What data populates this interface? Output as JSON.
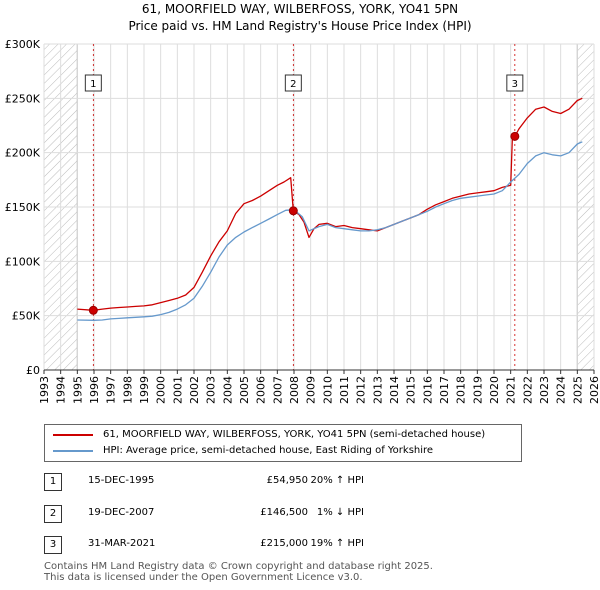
{
  "title_line1": "61, MOORFIELD WAY, WILBERFOSS, YORK, YO41 5PN",
  "title_line2": "Price paid vs. HM Land Registry's House Price Index (HPI)",
  "colors": {
    "property": "#cc0000",
    "hpi": "#6699cc",
    "grid": "#dddddd",
    "marker_line": "#cc0000"
  },
  "chart_data": {
    "type": "line",
    "xlim": [
      1993.0,
      2026.0
    ],
    "ylim": [
      0,
      300000
    ],
    "x_ticks": [
      1993,
      1994,
      1995,
      1996,
      1997,
      1998,
      1999,
      2000,
      2001,
      2002,
      2003,
      2004,
      2005,
      2006,
      2007,
      2008,
      2009,
      2010,
      2011,
      2012,
      2013,
      2014,
      2015,
      2016,
      2017,
      2018,
      2019,
      2020,
      2021,
      2022,
      2023,
      2024,
      2025,
      2026
    ],
    "y_ticks": [
      0,
      50000,
      100000,
      150000,
      200000,
      250000,
      300000
    ],
    "y_tick_labels": [
      "£0",
      "£50K",
      "£100K",
      "£150K",
      "£200K",
      "£250K",
      "£300K"
    ],
    "hatch_before": 1995.0,
    "hatch_after": 2025.0,
    "series": [
      {
        "name": "property",
        "x": [
          1995.0,
          1995.96,
          1996.5,
          1997.0,
          1997.5,
          1998.0,
          1998.5,
          1999.0,
          1999.5,
          2000.0,
          2000.5,
          2001.0,
          2001.5,
          2002.0,
          2002.5,
          2003.0,
          2003.5,
          2004.0,
          2004.5,
          2005.0,
          2005.5,
          2006.0,
          2006.5,
          2007.0,
          2007.4,
          2007.8,
          2007.96,
          2008.3,
          2008.6,
          2008.9,
          2009.2,
          2009.5,
          2010.0,
          2010.5,
          2011.0,
          2011.5,
          2012.0,
          2012.5,
          2013.0,
          2013.5,
          2014.0,
          2014.5,
          2015.0,
          2015.5,
          2016.0,
          2016.5,
          2017.0,
          2017.5,
          2018.0,
          2018.5,
          2019.0,
          2019.5,
          2020.0,
          2020.5,
          2021.0,
          2021.1,
          2021.25,
          2021.5,
          2022.0,
          2022.5,
          2023.0,
          2023.5,
          2024.0,
          2024.5,
          2025.0,
          2025.3
        ],
        "y": [
          56000,
          54950,
          56000,
          57000,
          57500,
          58000,
          58500,
          59000,
          60000,
          62000,
          64000,
          66000,
          69000,
          76000,
          90000,
          105000,
          118000,
          128000,
          144000,
          153000,
          156000,
          160000,
          165000,
          170000,
          173000,
          177000,
          146500,
          143000,
          136000,
          122000,
          130000,
          134000,
          135000,
          132000,
          133000,
          131000,
          130000,
          129000,
          128000,
          131000,
          134000,
          137000,
          140000,
          143000,
          148000,
          152000,
          155000,
          158000,
          160000,
          162000,
          163000,
          164000,
          165000,
          168000,
          170000,
          212000,
          215000,
          222000,
          232000,
          240000,
          242000,
          238000,
          236000,
          240000,
          248000,
          250000
        ]
      },
      {
        "name": "hpi",
        "x": [
          1995.0,
          1996.0,
          1996.5,
          1997.0,
          1997.5,
          1998.0,
          1998.5,
          1999.0,
          1999.5,
          2000.0,
          2000.5,
          2001.0,
          2001.5,
          2002.0,
          2002.5,
          2003.0,
          2003.5,
          2004.0,
          2004.5,
          2005.0,
          2005.5,
          2006.0,
          2006.5,
          2007.0,
          2007.5,
          2008.0,
          2008.5,
          2008.9,
          2009.2,
          2009.5,
          2010.0,
          2010.5,
          2011.0,
          2011.5,
          2012.0,
          2012.5,
          2013.0,
          2013.5,
          2014.0,
          2014.5,
          2015.0,
          2015.5,
          2016.0,
          2016.5,
          2017.0,
          2017.5,
          2018.0,
          2018.5,
          2019.0,
          2019.5,
          2020.0,
          2020.5,
          2021.0,
          2021.5,
          2022.0,
          2022.5,
          2023.0,
          2023.5,
          2024.0,
          2024.5,
          2025.0,
          2025.3
        ],
        "y": [
          46000,
          45700,
          46000,
          47000,
          47500,
          48000,
          48500,
          49000,
          49500,
          51000,
          53000,
          56000,
          60000,
          66000,
          77000,
          90000,
          104000,
          115000,
          122000,
          127000,
          131000,
          135000,
          139000,
          143000,
          147000,
          147500,
          141000,
          128000,
          130000,
          132000,
          134000,
          131000,
          130000,
          129000,
          128000,
          128000,
          129000,
          131000,
          134000,
          137000,
          140000,
          143000,
          146000,
          150000,
          153000,
          156000,
          158000,
          159000,
          160000,
          161000,
          162000,
          165000,
          173000,
          180000,
          190000,
          197000,
          200000,
          198000,
          197000,
          200000,
          208000,
          210000
        ]
      }
    ],
    "sales": [
      {
        "label": "1",
        "x": 1995.96,
        "y": 54950
      },
      {
        "label": "2",
        "x": 2007.96,
        "y": 146500
      },
      {
        "label": "3",
        "x": 2021.25,
        "y": 215000
      }
    ]
  },
  "legend": {
    "property": "61, MOORFIELD WAY, WILBERFOSS, YORK, YO41 5PN (semi-detached house)",
    "hpi": "HPI: Average price, semi-detached house, East Riding of Yorkshire"
  },
  "sales_table": [
    {
      "num": "1",
      "date": "15-DEC-1995",
      "price": "£54,950",
      "hpi": "20% ↑ HPI"
    },
    {
      "num": "2",
      "date": "19-DEC-2007",
      "price": "£146,500",
      "hpi": "1% ↓ HPI"
    },
    {
      "num": "3",
      "date": "31-MAR-2021",
      "price": "£215,000",
      "hpi": "19% ↑ HPI"
    }
  ],
  "footer_line1": "Contains HM Land Registry data © Crown copyright and database right 2025.",
  "footer_line2": "This data is licensed under the Open Government Licence v3.0."
}
